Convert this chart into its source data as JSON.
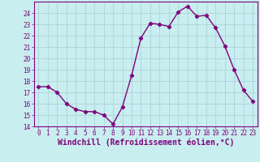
{
  "x": [
    0,
    1,
    2,
    3,
    4,
    5,
    6,
    7,
    8,
    9,
    10,
    11,
    12,
    13,
    14,
    15,
    16,
    17,
    18,
    19,
    20,
    21,
    22,
    23
  ],
  "y": [
    17.5,
    17.5,
    17.0,
    16.0,
    15.5,
    15.3,
    15.3,
    15.0,
    14.2,
    15.7,
    18.5,
    21.8,
    23.1,
    23.0,
    22.8,
    24.1,
    24.6,
    23.7,
    23.8,
    22.7,
    21.1,
    19.0,
    17.2,
    16.2
  ],
  "line_color": "#800080",
  "marker": "D",
  "marker_size": 2.2,
  "bg_color": "#c8eef0",
  "grid_color": "#b0d8dc",
  "xlabel": "Windchill (Refroidissement éolien,°C)",
  "xlim": [
    -0.5,
    23.5
  ],
  "ylim": [
    14,
    25
  ],
  "yticks": [
    14,
    15,
    16,
    17,
    18,
    19,
    20,
    21,
    22,
    23,
    24
  ],
  "xticks": [
    0,
    1,
    2,
    3,
    4,
    5,
    6,
    7,
    8,
    9,
    10,
    11,
    12,
    13,
    14,
    15,
    16,
    17,
    18,
    19,
    20,
    21,
    22,
    23
  ],
  "tick_label_size": 5.5,
  "xlabel_size": 7.0,
  "line_width": 1.0
}
